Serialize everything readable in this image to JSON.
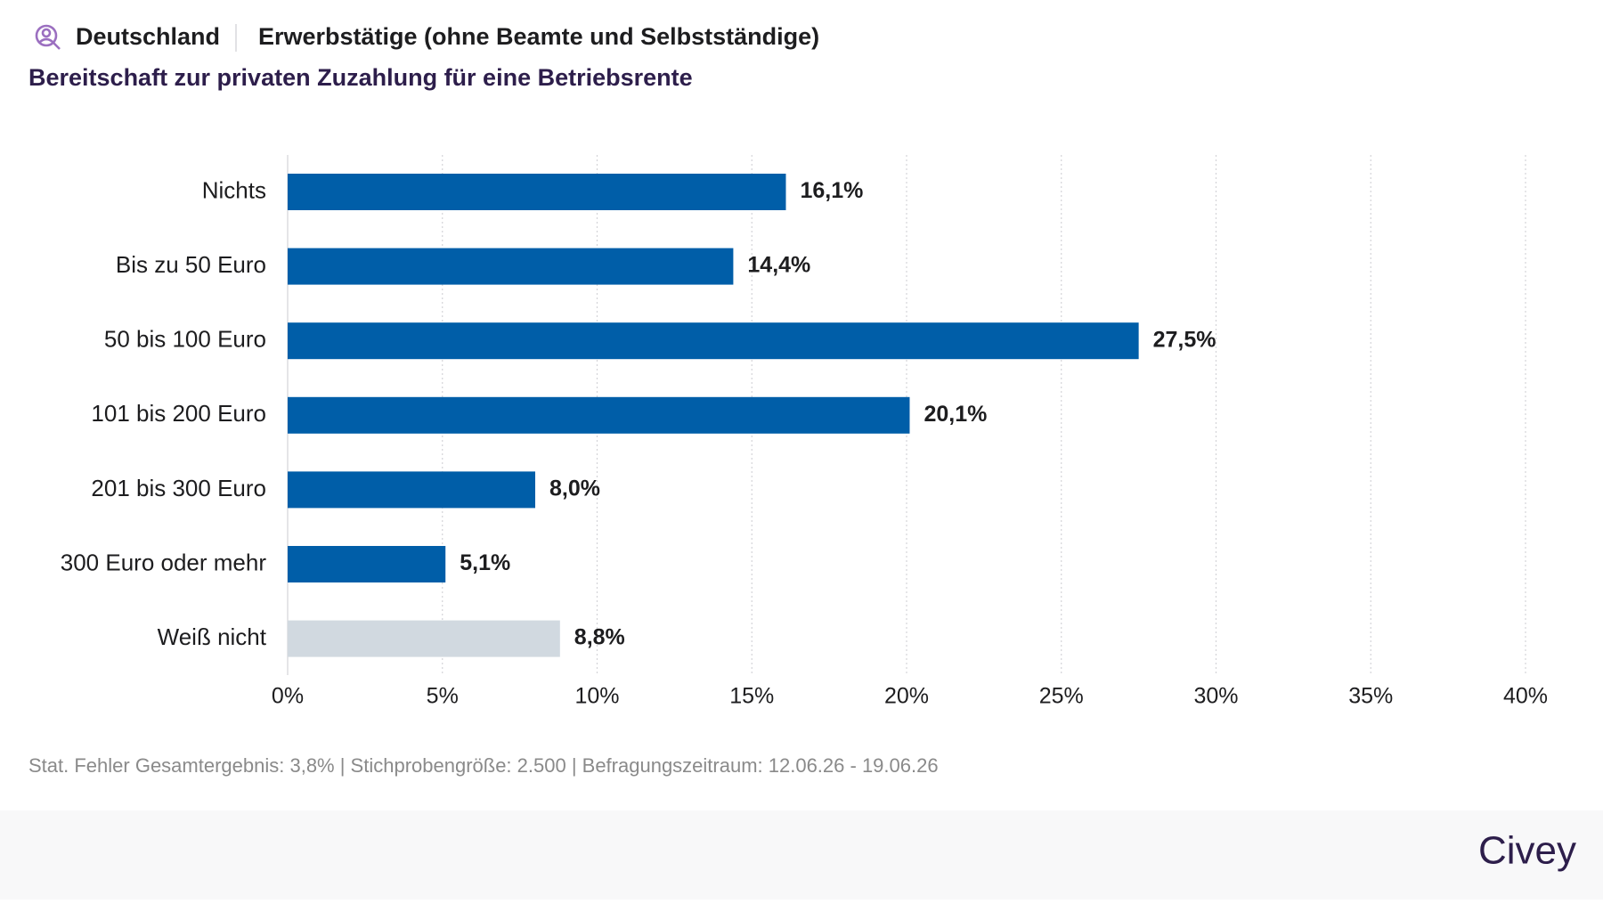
{
  "header": {
    "location": "Deutschland",
    "audience": "Erwerbstätige (ohne Beamte und Selbstständige)"
  },
  "chart_data": {
    "type": "bar",
    "orientation": "horizontal",
    "title": "Bereitschaft zur privaten Zuzahlung für eine Betriebsrente",
    "categories": [
      "Nichts",
      "Bis zu 50 Euro",
      "50 bis 100 Euro",
      "101 bis 200 Euro",
      "201 bis 300 Euro",
      "300 Euro oder mehr",
      "Weiß nicht"
    ],
    "values": [
      16.1,
      14.4,
      27.5,
      20.1,
      8.0,
      5.1,
      8.8
    ],
    "value_labels": [
      "16,1%",
      "14,4%",
      "27,5%",
      "20,1%",
      "8,0%",
      "5,1%",
      "8,8%"
    ],
    "colors": [
      "#005ea8",
      "#005ea8",
      "#005ea8",
      "#005ea8",
      "#005ea8",
      "#005ea8",
      "#d1d9e0"
    ],
    "xlim": [
      0,
      40
    ],
    "xticks": [
      {
        "value": 0,
        "label": "0%"
      },
      {
        "value": 5,
        "label": "5%"
      },
      {
        "value": 10,
        "label": "10%"
      },
      {
        "value": 15,
        "label": "15%"
      },
      {
        "value": 20,
        "label": "20%"
      },
      {
        "value": 25,
        "label": "25%"
      },
      {
        "value": 30,
        "label": "30%"
      },
      {
        "value": 35,
        "label": "35%"
      },
      {
        "value": 40,
        "label": "40%"
      }
    ],
    "grid": true
  },
  "footer": {
    "note": "Stat. Fehler Gesamtergebnis: 3,8% | Stichprobengröße: 2.500 | Befragungszeitraum: 12.06.26 - 19.06.26",
    "brand": "Civey"
  }
}
